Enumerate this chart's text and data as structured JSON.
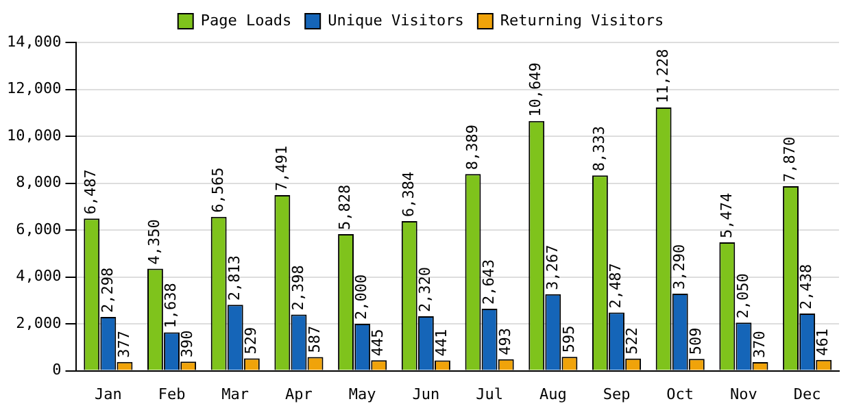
{
  "chart_data": {
    "type": "bar",
    "categories": [
      "Jan",
      "Feb",
      "Mar",
      "Apr",
      "May",
      "Jun",
      "Jul",
      "Aug",
      "Sep",
      "Oct",
      "Nov",
      "Dec"
    ],
    "series": [
      {
        "name": "Page Loads",
        "color": "#7fc31c",
        "values": [
          6487,
          4350,
          6565,
          7491,
          5828,
          6384,
          8389,
          10649,
          8333,
          11228,
          5474,
          7870
        ],
        "value_labels": [
          "6,487",
          "4,350",
          "6,565",
          "7,491",
          "5,828",
          "6,384",
          "8,389",
          "10,649",
          "8,333",
          "11,228",
          "5,474",
          "7,870"
        ]
      },
      {
        "name": "Unique Visitors",
        "color": "#1565b8",
        "values": [
          2298,
          1638,
          2813,
          2398,
          2000,
          2320,
          2643,
          3267,
          2487,
          3290,
          2050,
          2438
        ],
        "value_labels": [
          "2,298",
          "1,638",
          "2,813",
          "2,398",
          "2,000",
          "2,320",
          "2,643",
          "3,267",
          "2,487",
          "3,290",
          "2,050",
          "2,438"
        ]
      },
      {
        "name": "Returning Visitors",
        "color": "#f0a30a",
        "values": [
          377,
          390,
          529,
          587,
          445,
          441,
          493,
          595,
          522,
          509,
          370,
          461
        ],
        "value_labels": [
          "377",
          "390",
          "529",
          "587",
          "445",
          "441",
          "493",
          "595",
          "522",
          "509",
          "370",
          "461"
        ]
      }
    ],
    "ylim": [
      0,
      14000
    ],
    "yticks": [
      0,
      {
        "value": 2000,
        "label": "2,000"
      },
      {
        "value": 4000,
        "label": "4,000"
      },
      {
        "value": 6000,
        "label": "6,000"
      },
      {
        "value": 8000,
        "label": "8,000"
      },
      {
        "value": 10000,
        "label": "10,000"
      },
      {
        "value": 12000,
        "label": "12,000"
      },
      {
        "value": 14000,
        "label": "14,000"
      }
    ],
    "grid": "y",
    "legend": "top"
  }
}
